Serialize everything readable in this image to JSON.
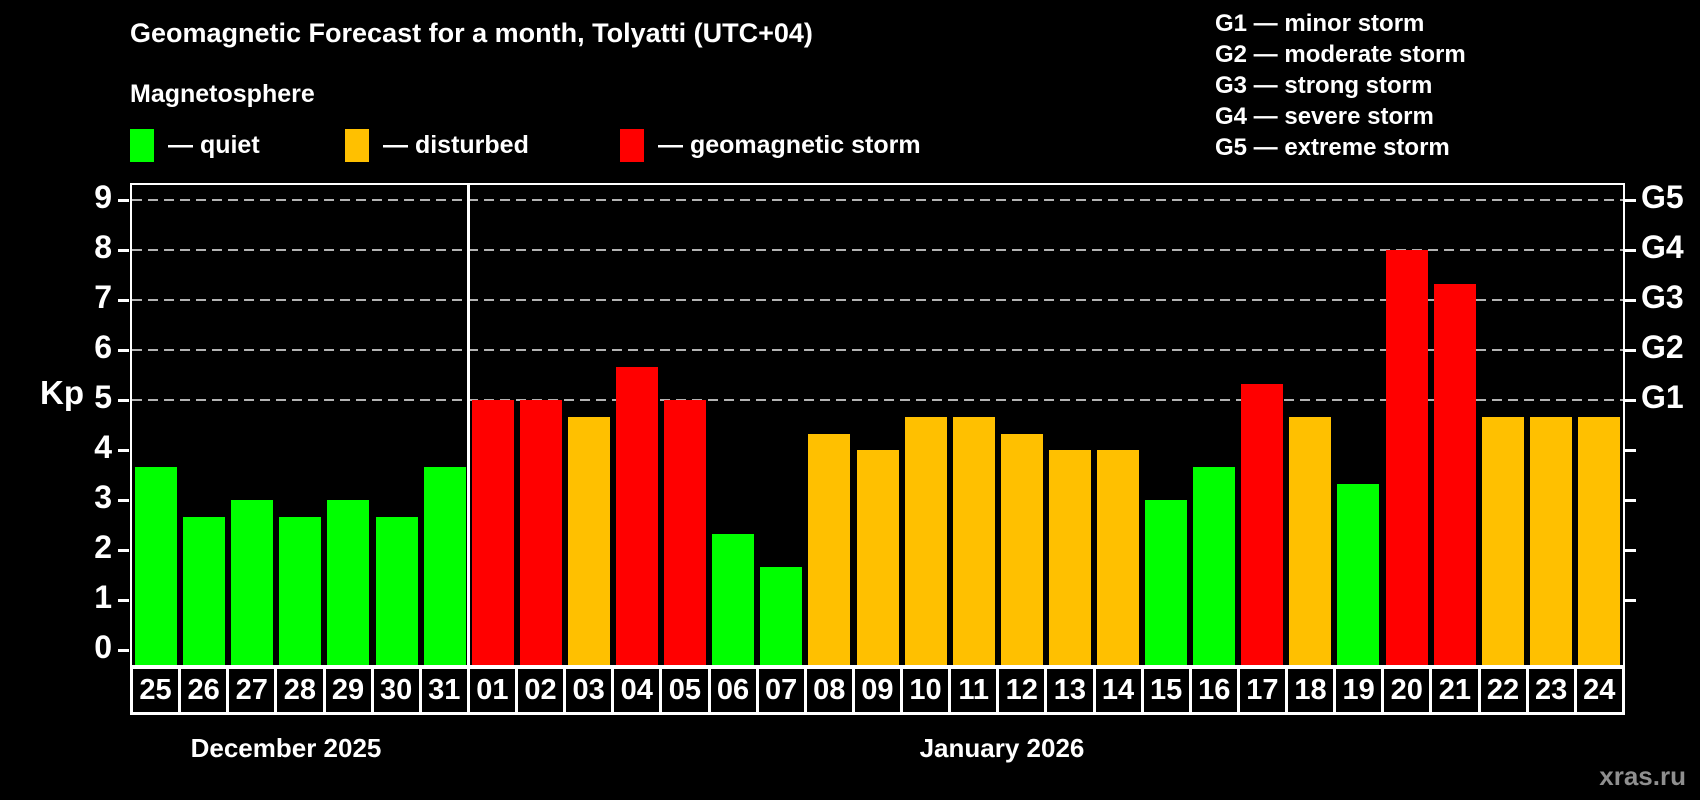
{
  "header": {
    "title": "Geomagnetic Forecast for a month, Tolyatti (UTC+04)",
    "subtitle": "Magnetosphere"
  },
  "legend": {
    "items": [
      {
        "label": "— quiet",
        "status": "quiet"
      },
      {
        "label": "— disturbed",
        "status": "disturbed"
      },
      {
        "label": "— geomagnetic storm",
        "status": "storm"
      }
    ]
  },
  "g_legend": {
    "lines": [
      "G1 — minor storm",
      "G2 — moderate storm",
      "G3 — strong storm",
      "G4 — severe storm",
      "G5 — extreme storm"
    ]
  },
  "axis": {
    "kp_label": "Kp",
    "left_ticks": [
      "0",
      "1",
      "2",
      "3",
      "4",
      "5",
      "6",
      "7",
      "8",
      "9"
    ],
    "right_labels": [
      {
        "label": "G1",
        "kp": 5
      },
      {
        "label": "G2",
        "kp": 6
      },
      {
        "label": "G3",
        "kp": 7
      },
      {
        "label": "G4",
        "kp": 8
      },
      {
        "label": "G5",
        "kp": 9
      }
    ]
  },
  "colors": {
    "quiet": "#00ff00",
    "disturbed": "#ffc000",
    "storm": "#ff0000",
    "grid": "#b3b3b3",
    "axis": "#ffffff",
    "watermark": "#8f8f8f"
  },
  "chart_data": {
    "type": "bar",
    "title": "Geomagnetic Forecast for a month, Tolyatti (UTC+04)",
    "ylabel": "Kp",
    "ylim": [
      0,
      9
    ],
    "grid": "dashed horizontal at Kp 5-9 only",
    "gridlines_at": [
      5,
      6,
      7,
      8,
      9
    ],
    "g_scale_note": "right axis: G1=Kp5, G2=Kp6, G3=Kp7, G4=Kp8, G5=Kp9",
    "month_split_index": 7,
    "categories": [
      "25",
      "26",
      "27",
      "28",
      "29",
      "30",
      "31",
      "01",
      "02",
      "03",
      "04",
      "05",
      "06",
      "07",
      "08",
      "09",
      "10",
      "11",
      "12",
      "13",
      "14",
      "15",
      "16",
      "17",
      "18",
      "19",
      "20",
      "21",
      "22",
      "23",
      "24"
    ],
    "values": [
      3.67,
      2.67,
      3,
      2.67,
      3,
      2.67,
      3.67,
      5,
      5,
      4.67,
      5.67,
      5,
      2.33,
      1.67,
      4.33,
      4,
      4.67,
      4.67,
      4.33,
      4,
      4,
      3,
      3.67,
      5.33,
      4.67,
      3.33,
      8,
      7.33,
      4.67,
      4.67,
      4.67
    ],
    "statuses": [
      "quiet",
      "quiet",
      "quiet",
      "quiet",
      "quiet",
      "quiet",
      "quiet",
      "storm",
      "storm",
      "disturbed",
      "storm",
      "storm",
      "quiet",
      "quiet",
      "disturbed",
      "disturbed",
      "disturbed",
      "disturbed",
      "disturbed",
      "disturbed",
      "disturbed",
      "quiet",
      "quiet",
      "storm",
      "disturbed",
      "quiet",
      "storm",
      "storm",
      "disturbed",
      "disturbed",
      "disturbed"
    ]
  },
  "months": [
    {
      "label": "December 2025"
    },
    {
      "label": "January 2026"
    }
  ],
  "watermark": "xras.ru"
}
